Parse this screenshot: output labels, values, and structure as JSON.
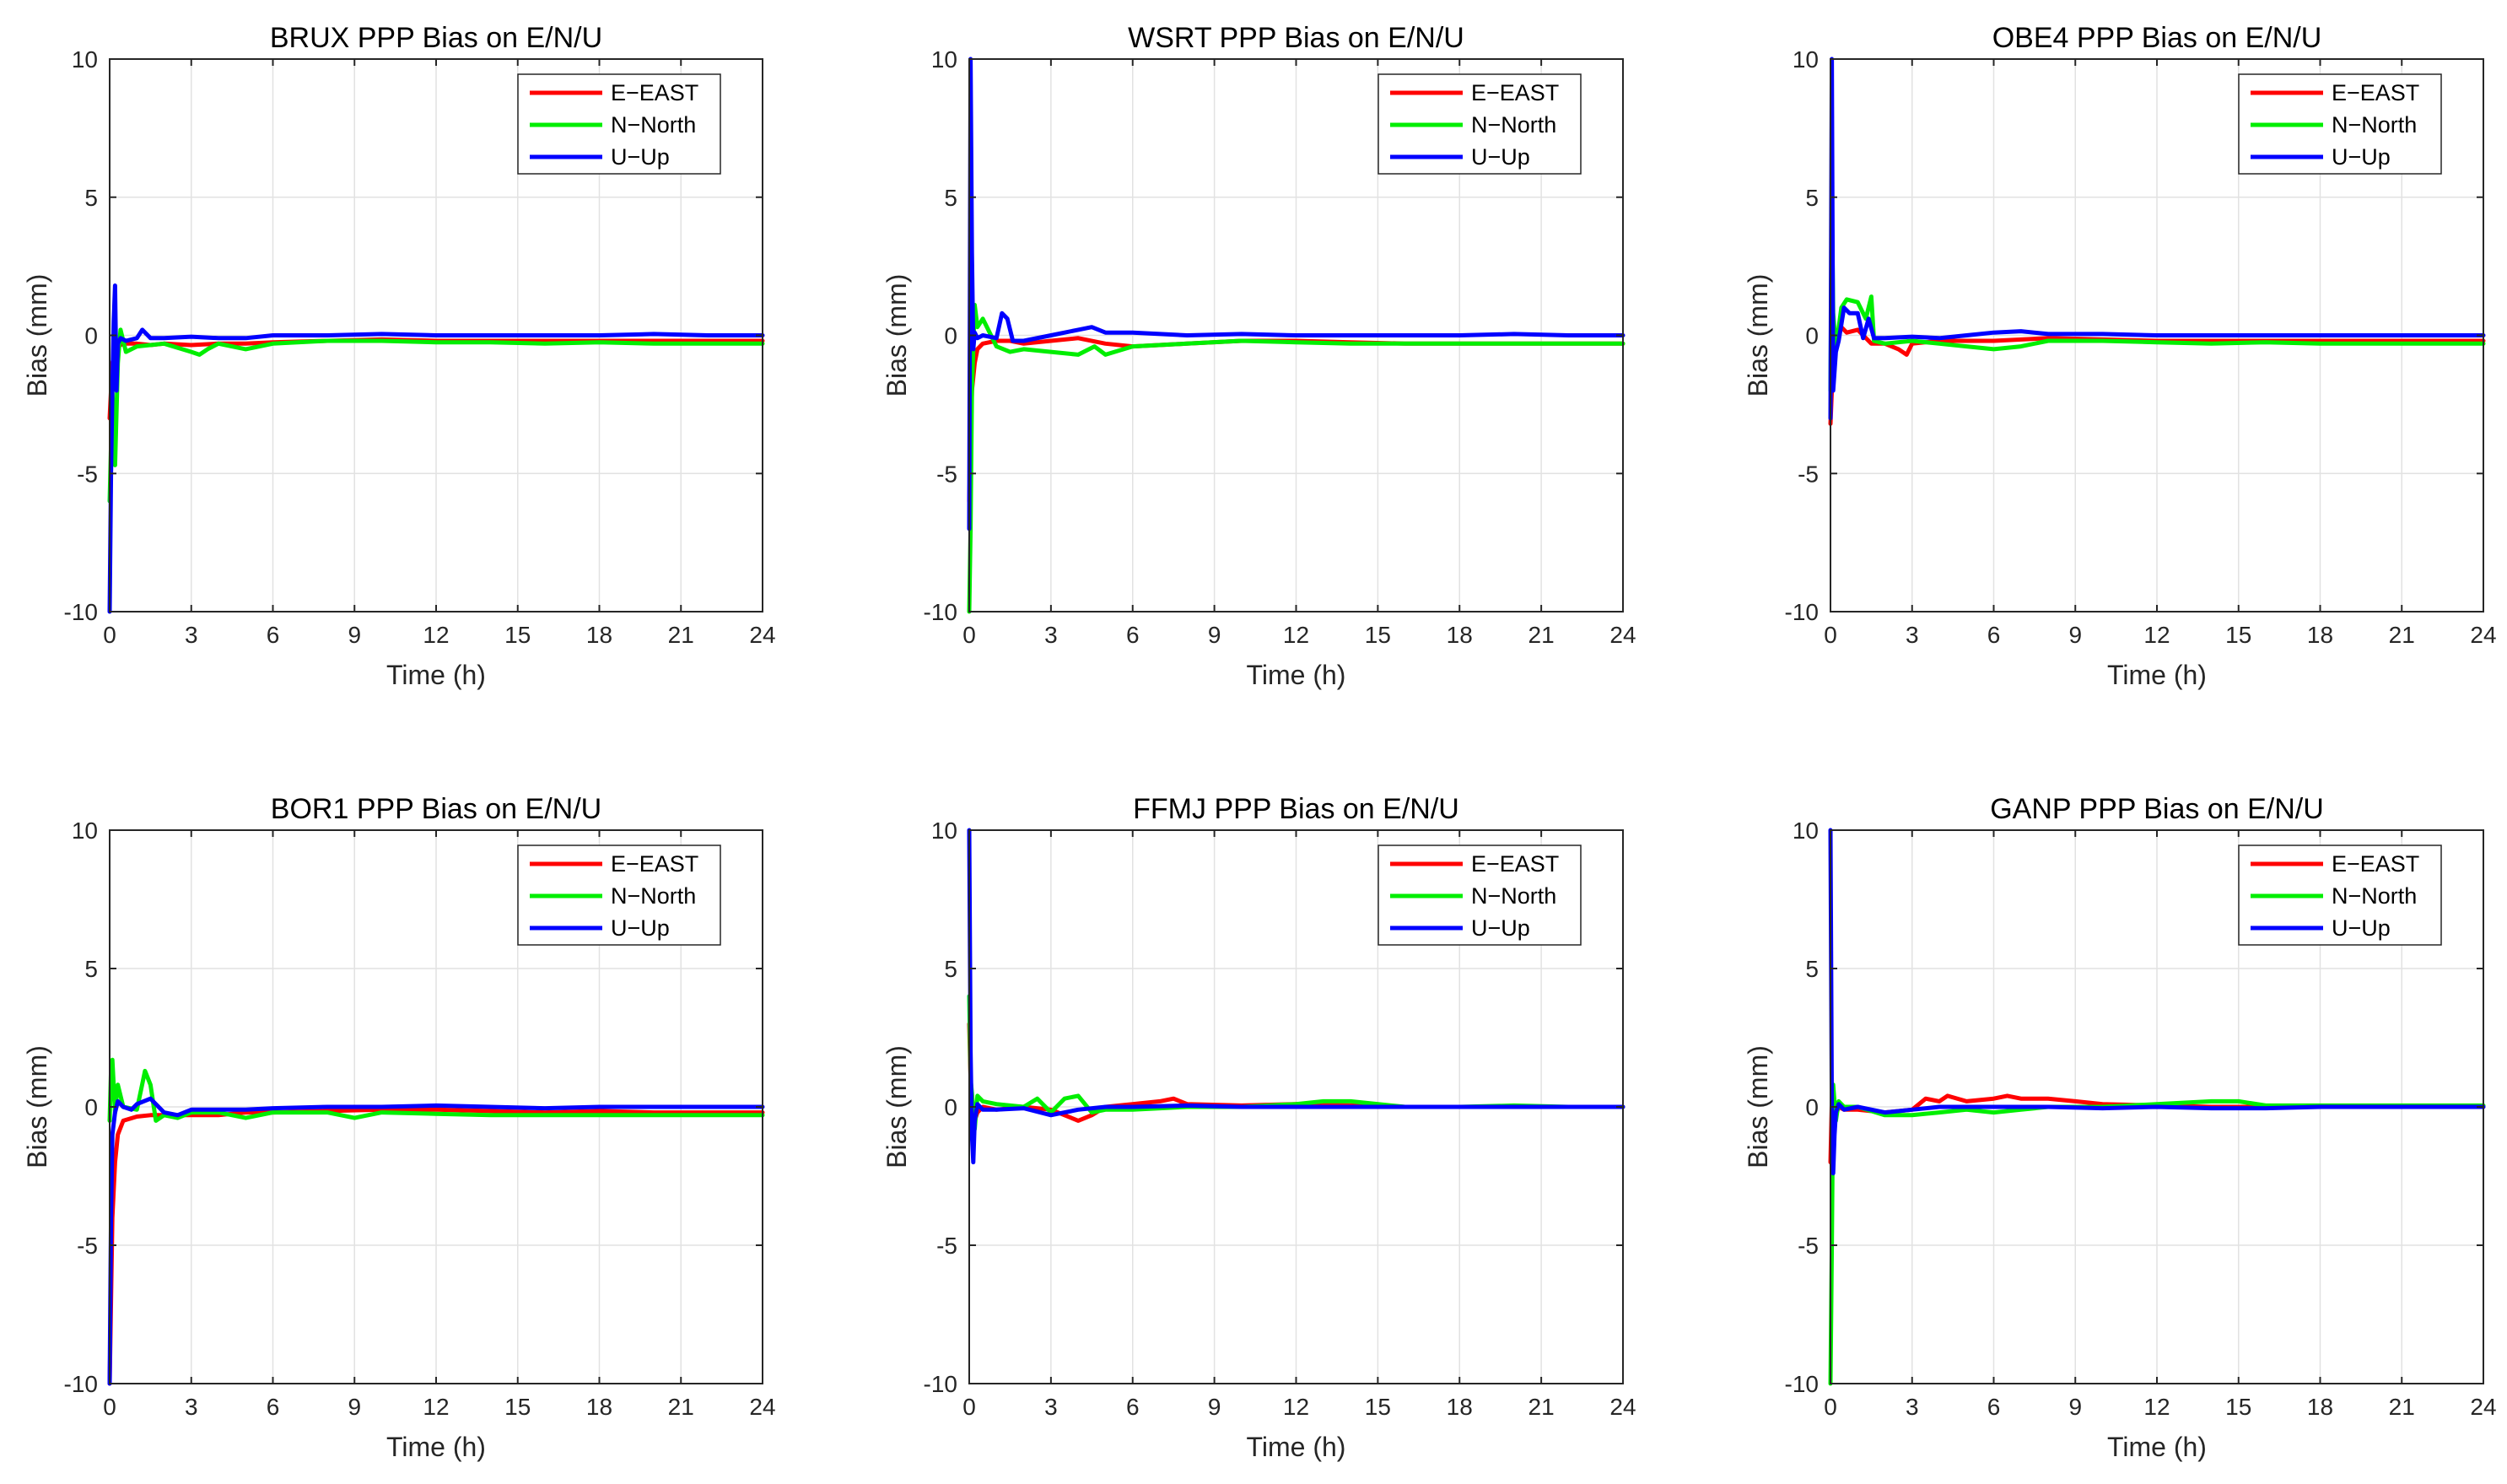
{
  "colors": {
    "east": "#ff0000",
    "north": "#00ee00",
    "up": "#0000ff",
    "grid": "#e2e2e2",
    "axis": "#262626"
  },
  "chart_data": [
    {
      "type": "line",
      "title": "BRUX PPP Bias on E/N/U",
      "xlabel": "Time (h)",
      "ylabel": "Bias (mm)",
      "xlim": [
        0,
        24
      ],
      "ylim": [
        -10,
        10
      ],
      "xticks": [
        "0",
        "3",
        "6",
        "9",
        "12",
        "15",
        "18",
        "21",
        "24"
      ],
      "yticks": [
        "-10",
        "-5",
        "0",
        "5",
        "10"
      ],
      "grid": true,
      "legend_position": "top-right",
      "series": [
        {
          "name": "E−EAST",
          "x": [
            0,
            0.1,
            0.2,
            0.3,
            0.5,
            1,
            1.5,
            2,
            3,
            4,
            5,
            6,
            8,
            10,
            12,
            14,
            16,
            18,
            20,
            22,
            24
          ],
          "y": [
            -3,
            -1,
            -0.6,
            -0.4,
            -0.3,
            -0.3,
            -0.35,
            -0.3,
            -0.35,
            -0.3,
            -0.3,
            -0.25,
            -0.2,
            -0.15,
            -0.2,
            -0.2,
            -0.2,
            -0.2,
            -0.2,
            -0.2,
            -0.2
          ]
        },
        {
          "name": "N−North",
          "x": [
            0,
            0.1,
            0.2,
            0.3,
            0.4,
            0.6,
            1,
            2,
            3,
            3.3,
            3.6,
            4,
            5,
            6,
            8,
            10,
            12,
            14,
            16,
            18,
            20,
            22,
            24
          ],
          "y": [
            -6,
            -2,
            -4.7,
            -1,
            0.2,
            -0.6,
            -0.4,
            -0.3,
            -0.6,
            -0.7,
            -0.5,
            -0.3,
            -0.5,
            -0.3,
            -0.2,
            -0.2,
            -0.25,
            -0.25,
            -0.3,
            -0.25,
            -0.3,
            -0.3,
            -0.3
          ]
        },
        {
          "name": "U−Up",
          "x": [
            0,
            0.05,
            0.1,
            0.15,
            0.2,
            0.25,
            0.3,
            0.4,
            0.6,
            1,
            1.2,
            1.5,
            2,
            3,
            4,
            5,
            6,
            8,
            10,
            12,
            14,
            16,
            18,
            20,
            22,
            24
          ],
          "y": [
            -10,
            -5,
            -2,
            0.5,
            1.8,
            -2,
            -0.3,
            -0.1,
            -0.2,
            -0.1,
            0.2,
            -0.1,
            -0.1,
            -0.05,
            -0.1,
            -0.1,
            0,
            0,
            0.05,
            0,
            0,
            0,
            0,
            0.05,
            0,
            0
          ]
        }
      ]
    },
    {
      "type": "line",
      "title": "WSRT PPP Bias on E/N/U",
      "xlabel": "Time (h)",
      "ylabel": "Bias (mm)",
      "xlim": [
        0,
        24
      ],
      "ylim": [
        -10,
        10
      ],
      "xticks": [
        "0",
        "3",
        "6",
        "9",
        "12",
        "15",
        "18",
        "21",
        "24"
      ],
      "yticks": [
        "-10",
        "-5",
        "0",
        "5",
        "10"
      ],
      "grid": true,
      "legend_position": "top-right",
      "series": [
        {
          "name": "E−EAST",
          "x": [
            0,
            0.05,
            0.1,
            0.2,
            0.3,
            0.5,
            1,
            1.5,
            2,
            3,
            4,
            5,
            6,
            8,
            10,
            12,
            14,
            16,
            18,
            20,
            22,
            24
          ],
          "y": [
            -6,
            -4,
            -2,
            -1,
            -0.5,
            -0.3,
            -0.2,
            -0.2,
            -0.3,
            -0.2,
            -0.1,
            -0.3,
            -0.4,
            -0.3,
            -0.2,
            -0.2,
            -0.25,
            -0.3,
            -0.3,
            -0.3,
            -0.3,
            -0.3
          ]
        },
        {
          "name": "N−North",
          "x": [
            0,
            0.05,
            0.1,
            0.2,
            0.3,
            0.5,
            1,
            1.5,
            2,
            3,
            4,
            4.6,
            5,
            6,
            8,
            10,
            12,
            14,
            16,
            18,
            20,
            22,
            24
          ],
          "y": [
            -10,
            -7,
            -2,
            1.1,
            0.3,
            0.6,
            -0.4,
            -0.6,
            -0.5,
            -0.6,
            -0.7,
            -0.4,
            -0.7,
            -0.4,
            -0.3,
            -0.2,
            -0.25,
            -0.3,
            -0.3,
            -0.3,
            -0.3,
            -0.3,
            -0.3
          ]
        },
        {
          "name": "U−Up",
          "x": [
            0,
            0.05,
            0.1,
            0.15,
            0.2,
            0.3,
            0.5,
            1,
            1.2,
            1.4,
            1.6,
            2,
            3,
            4,
            4.5,
            5,
            6,
            8,
            10,
            12,
            14,
            16,
            18,
            20,
            22,
            24
          ],
          "y": [
            -7,
            10,
            3,
            -0.5,
            0.1,
            -0.1,
            0,
            -0.1,
            0.8,
            0.6,
            -0.2,
            -0.2,
            0,
            0.2,
            0.3,
            0.1,
            0.1,
            0,
            0.05,
            0,
            0,
            0,
            0,
            0.05,
            0,
            0
          ]
        }
      ]
    },
    {
      "type": "line",
      "title": "OBE4 PPP Bias on E/N/U",
      "xlabel": "Time (h)",
      "ylabel": "Bias (mm)",
      "xlim": [
        0,
        24
      ],
      "ylim": [
        -10,
        10
      ],
      "xticks": [
        "0",
        "3",
        "6",
        "9",
        "12",
        "15",
        "18",
        "21",
        "24"
      ],
      "yticks": [
        "-10",
        "-5",
        "0",
        "5",
        "10"
      ],
      "grid": true,
      "legend_position": "top-right",
      "series": [
        {
          "name": "E−EAST",
          "x": [
            0,
            0.05,
            0.1,
            0.2,
            0.4,
            0.6,
            1,
            1.5,
            2,
            2.5,
            2.8,
            3,
            4,
            5,
            6,
            8,
            10,
            12,
            14,
            16,
            18,
            20,
            22,
            24
          ],
          "y": [
            -3.2,
            -2,
            -1,
            -0.3,
            0.3,
            0.1,
            0.2,
            -0.3,
            -0.3,
            -0.5,
            -0.7,
            -0.3,
            -0.2,
            -0.2,
            -0.2,
            -0.1,
            -0.15,
            -0.2,
            -0.2,
            -0.2,
            -0.2,
            -0.2,
            -0.2,
            -0.2
          ]
        },
        {
          "name": "N−North",
          "x": [
            0,
            0.05,
            0.1,
            0.2,
            0.4,
            0.6,
            1,
            1.3,
            1.5,
            1.6,
            2,
            3,
            4,
            5,
            6,
            7,
            8,
            10,
            12,
            14,
            16,
            18,
            20,
            22,
            24
          ],
          "y": [
            -2,
            5,
            0.8,
            -0.5,
            1,
            1.3,
            1.2,
            0.6,
            1.4,
            -0.2,
            -0.3,
            -0.2,
            -0.3,
            -0.4,
            -0.5,
            -0.4,
            -0.2,
            -0.2,
            -0.25,
            -0.3,
            -0.25,
            -0.3,
            -0.3,
            -0.3,
            -0.3
          ]
        },
        {
          "name": "U−Up",
          "x": [
            0,
            0.05,
            0.1,
            0.2,
            0.3,
            0.5,
            0.7,
            1,
            1.2,
            1.4,
            1.6,
            2,
            3,
            4,
            5,
            6,
            7,
            8,
            10,
            12,
            14,
            16,
            18,
            20,
            22,
            24
          ],
          "y": [
            -3,
            10,
            -2,
            -0.6,
            -0.2,
            1,
            0.8,
            0.8,
            -0.1,
            0.6,
            -0.1,
            -0.1,
            -0.05,
            -0.1,
            0,
            0.1,
            0.15,
            0.05,
            0.05,
            0,
            0,
            0,
            0,
            0,
            0,
            0
          ]
        }
      ]
    },
    {
      "type": "line",
      "title": "BOR1 PPP Bias on E/N/U",
      "xlabel": "Time (h)",
      "ylabel": "Bias (mm)",
      "xlim": [
        0,
        24
      ],
      "ylim": [
        -10,
        10
      ],
      "xticks": [
        "0",
        "3",
        "6",
        "9",
        "12",
        "15",
        "18",
        "21",
        "24"
      ],
      "yticks": [
        "-10",
        "-5",
        "0",
        "5",
        "10"
      ],
      "grid": true,
      "legend_position": "top-right",
      "series": [
        {
          "name": "E−EAST",
          "x": [
            0,
            0.1,
            0.2,
            0.3,
            0.5,
            1,
            1.5,
            2,
            3,
            4,
            5,
            6,
            8,
            10,
            12,
            14,
            16,
            18,
            20,
            22,
            24
          ],
          "y": [
            -10,
            -4,
            -2,
            -1,
            -0.5,
            -0.35,
            -0.3,
            -0.3,
            -0.3,
            -0.3,
            -0.2,
            -0.2,
            -0.15,
            -0.1,
            -0.1,
            -0.15,
            -0.2,
            -0.15,
            -0.2,
            -0.2,
            -0.2
          ]
        },
        {
          "name": "N−North",
          "x": [
            0,
            0.05,
            0.1,
            0.2,
            0.3,
            0.5,
            1,
            1.3,
            1.5,
            1.7,
            2,
            2.5,
            3,
            4,
            5,
            6,
            8,
            9,
            10,
            12,
            14,
            16,
            18,
            20,
            22,
            24
          ],
          "y": [
            -0.5,
            1.3,
            1.7,
            -0.2,
            0.8,
            0,
            -0.1,
            1.3,
            0.8,
            -0.5,
            -0.3,
            -0.4,
            -0.2,
            -0.2,
            -0.4,
            -0.2,
            -0.2,
            -0.4,
            -0.2,
            -0.25,
            -0.3,
            -0.3,
            -0.3,
            -0.3,
            -0.3,
            -0.3
          ]
        },
        {
          "name": "U−Up",
          "x": [
            0,
            0.05,
            0.1,
            0.2,
            0.3,
            0.5,
            0.8,
            1,
            1.5,
            2,
            2.5,
            3,
            4,
            5,
            6,
            8,
            10,
            12,
            14,
            16,
            18,
            20,
            22,
            24
          ],
          "y": [
            -10,
            -4,
            -1,
            -0.2,
            0.2,
            0,
            -0.1,
            0.1,
            0.3,
            -0.2,
            -0.3,
            -0.1,
            -0.1,
            -0.1,
            -0.05,
            0,
            0,
            0.05,
            0,
            -0.05,
            0,
            0,
            0,
            0
          ]
        }
      ]
    },
    {
      "type": "line",
      "title": "FFMJ PPP Bias on E/N/U",
      "xlabel": "Time (h)",
      "ylabel": "Bias (mm)",
      "xlim": [
        0,
        24
      ],
      "ylim": [
        -10,
        10
      ],
      "xticks": [
        "0",
        "3",
        "6",
        "9",
        "12",
        "15",
        "18",
        "21",
        "24"
      ],
      "yticks": [
        "-10",
        "-5",
        "0",
        "5",
        "10"
      ],
      "grid": true,
      "legend_position": "top-right",
      "series": [
        {
          "name": "E−EAST",
          "x": [
            0,
            0.05,
            0.1,
            0.2,
            0.3,
            0.5,
            1,
            2,
            3,
            3.5,
            4,
            4.5,
            5,
            6,
            7,
            7.5,
            8,
            10,
            12,
            14,
            16,
            18,
            20,
            22,
            24
          ],
          "y": [
            3,
            1,
            0.2,
            -0.5,
            -0.2,
            0,
            -0.1,
            0,
            -0.1,
            -0.3,
            -0.5,
            -0.3,
            0,
            0.1,
            0.2,
            0.3,
            0.1,
            0.05,
            0.1,
            0.05,
            0,
            0,
            0,
            0,
            0
          ]
        },
        {
          "name": "N−North",
          "x": [
            0,
            0.05,
            0.1,
            0.2,
            0.3,
            0.5,
            1,
            2,
            2.5,
            3,
            3.5,
            4,
            4.5,
            5,
            6,
            8,
            10,
            12,
            13,
            14,
            16,
            18,
            20,
            22,
            24
          ],
          "y": [
            4,
            1,
            0.5,
            -0.8,
            0.4,
            0.2,
            0.1,
            0,
            0.3,
            -0.2,
            0.3,
            0.4,
            -0.2,
            -0.1,
            -0.1,
            0,
            0,
            0.1,
            0.2,
            0.2,
            0,
            0,
            0.05,
            0,
            0
          ]
        },
        {
          "name": "U−Up",
          "x": [
            0,
            0.05,
            0.1,
            0.15,
            0.2,
            0.3,
            0.5,
            1,
            2,
            3,
            3.5,
            4,
            5,
            6,
            8,
            10,
            12,
            14,
            16,
            18,
            20,
            22,
            24
          ],
          "y": [
            10,
            2,
            -1,
            -2,
            -0.5,
            0.1,
            -0.1,
            -0.1,
            -0.05,
            -0.3,
            -0.2,
            -0.1,
            0,
            0,
            0.05,
            0,
            0,
            0,
            0,
            0,
            0,
            0,
            0
          ]
        }
      ]
    },
    {
      "type": "line",
      "title": "GANP PPP Bias on E/N/U",
      "xlabel": "Time (h)",
      "ylabel": "Bias (mm)",
      "xlim": [
        0,
        24
      ],
      "ylim": [
        -10,
        10
      ],
      "xticks": [
        "0",
        "3",
        "6",
        "9",
        "12",
        "15",
        "18",
        "21",
        "24"
      ],
      "yticks": [
        "-10",
        "-5",
        "0",
        "5",
        "10"
      ],
      "grid": true,
      "legend_position": "top-right",
      "series": [
        {
          "name": "E−EAST",
          "x": [
            0,
            0.05,
            0.1,
            0.2,
            0.3,
            0.5,
            1,
            2,
            3,
            3.5,
            4,
            4.3,
            5,
            6,
            6.5,
            7,
            8,
            9,
            10,
            12,
            14,
            16,
            18,
            20,
            22,
            24
          ],
          "y": [
            -2,
            0.2,
            -0.5,
            -0.3,
            0,
            -0.1,
            -0.1,
            -0.2,
            -0.1,
            0.3,
            0.2,
            0.4,
            0.2,
            0.3,
            0.4,
            0.3,
            0.3,
            0.2,
            0.1,
            0.05,
            0,
            0,
            0,
            0,
            0,
            0
          ]
        },
        {
          "name": "N−North",
          "x": [
            0,
            0.05,
            0.1,
            0.2,
            0.3,
            0.5,
            1,
            2,
            3,
            4,
            5,
            6,
            7,
            8,
            10,
            12,
            14,
            15,
            16,
            18,
            20,
            22,
            24
          ],
          "y": [
            -10,
            -5,
            0.8,
            -0.5,
            0.2,
            0,
            0,
            -0.3,
            -0.3,
            -0.2,
            -0.1,
            -0.2,
            -0.1,
            0,
            0,
            0.1,
            0.2,
            0.2,
            0.05,
            0.05,
            0.05,
            0.05,
            0.05
          ]
        },
        {
          "name": "U−Up",
          "x": [
            0,
            0.05,
            0.1,
            0.15,
            0.2,
            0.3,
            0.5,
            1,
            2,
            3,
            4,
            5,
            6,
            7,
            8,
            10,
            12,
            14,
            16,
            18,
            20,
            22,
            24
          ],
          "y": [
            10,
            0,
            -2.4,
            -1,
            -0.2,
            0.1,
            -0.1,
            0,
            -0.2,
            -0.1,
            0,
            0,
            0,
            0,
            0,
            -0.05,
            0,
            -0.05,
            -0.05,
            0,
            0,
            0,
            0
          ]
        }
      ]
    }
  ]
}
